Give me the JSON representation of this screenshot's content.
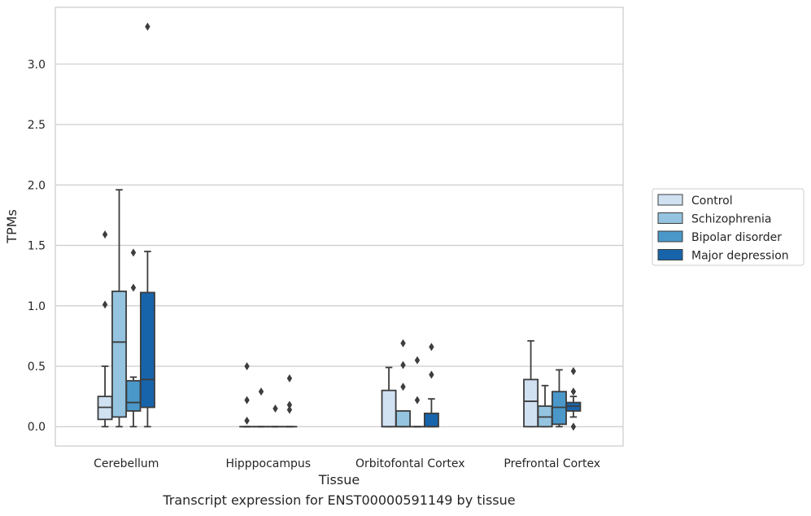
{
  "chart_data": {
    "type": "box",
    "title": "",
    "caption": "Transcript expression for ENST00000591149 by tissue",
    "xlabel": "Tissue",
    "ylabel": "TPMs",
    "categories": [
      "Cerebellum",
      "Hipppocampus",
      "Orbitofontal Cortex",
      "Prefrontal Cortex"
    ],
    "ylim": [
      -0.16,
      3.47
    ],
    "yticks": [
      0.0,
      0.5,
      1.0,
      1.5,
      2.0,
      2.5,
      3.0
    ],
    "grid": true,
    "legend": {
      "placement": "right"
    },
    "series": [
      {
        "name": "Control",
        "color": "#d0e1f2",
        "boxes": [
          {
            "min": 0.0,
            "q1": 0.06,
            "median": 0.16,
            "q3": 0.25,
            "max": 0.5,
            "outliers": [
              1.01,
              1.59
            ]
          },
          {
            "min": 0.0,
            "q1": 0.0,
            "median": 0.0,
            "q3": 0.0,
            "max": 0.0,
            "outliers": [
              0.05,
              0.22,
              0.5
            ]
          },
          {
            "min": 0.0,
            "q1": 0.0,
            "median": 0.0,
            "q3": 0.3,
            "max": 0.49,
            "outliers": []
          },
          {
            "min": 0.0,
            "q1": 0.0,
            "median": 0.21,
            "q3": 0.39,
            "max": 0.71,
            "outliers": []
          }
        ]
      },
      {
        "name": "Schizophrenia",
        "color": "#94c4df",
        "boxes": [
          {
            "min": 0.0,
            "q1": 0.08,
            "median": 0.7,
            "q3": 1.12,
            "max": 1.96,
            "outliers": []
          },
          {
            "min": 0.0,
            "q1": 0.0,
            "median": 0.0,
            "q3": 0.0,
            "max": 0.0,
            "outliers": [
              0.29
            ]
          },
          {
            "min": 0.0,
            "q1": 0.0,
            "median": 0.0,
            "q3": 0.13,
            "max": 0.13,
            "outliers": [
              0.33,
              0.51,
              0.69
            ]
          },
          {
            "min": 0.0,
            "q1": 0.0,
            "median": 0.08,
            "q3": 0.17,
            "max": 0.34,
            "outliers": []
          }
        ]
      },
      {
        "name": "Bipolar disorder",
        "color": "#4a98c9",
        "boxes": [
          {
            "min": 0.0,
            "q1": 0.13,
            "median": 0.2,
            "q3": 0.38,
            "max": 0.41,
            "outliers": [
              1.15,
              1.44
            ]
          },
          {
            "min": 0.0,
            "q1": 0.0,
            "median": 0.0,
            "q3": 0.0,
            "max": 0.0,
            "outliers": [
              0.15
            ]
          },
          {
            "min": 0.0,
            "q1": 0.0,
            "median": 0.0,
            "q3": 0.0,
            "max": 0.0,
            "outliers": [
              0.22,
              0.55
            ]
          },
          {
            "min": 0.0,
            "q1": 0.02,
            "median": 0.16,
            "q3": 0.29,
            "max": 0.47,
            "outliers": []
          }
        ]
      },
      {
        "name": "Major depression",
        "color": "#1764ab",
        "boxes": [
          {
            "min": 0.0,
            "q1": 0.16,
            "median": 0.39,
            "q3": 1.11,
            "max": 1.45,
            "outliers": [
              3.31
            ]
          },
          {
            "min": 0.0,
            "q1": 0.0,
            "median": 0.0,
            "q3": 0.0,
            "max": 0.0,
            "outliers": [
              0.14,
              0.18,
              0.4
            ]
          },
          {
            "min": 0.0,
            "q1": 0.0,
            "median": 0.0,
            "q3": 0.11,
            "max": 0.23,
            "outliers": [
              0.43,
              0.66
            ]
          },
          {
            "min": 0.08,
            "q1": 0.13,
            "median": 0.17,
            "q3": 0.2,
            "max": 0.25,
            "outliers": [
              0.0,
              0.29,
              0.46
            ]
          }
        ]
      }
    ]
  }
}
